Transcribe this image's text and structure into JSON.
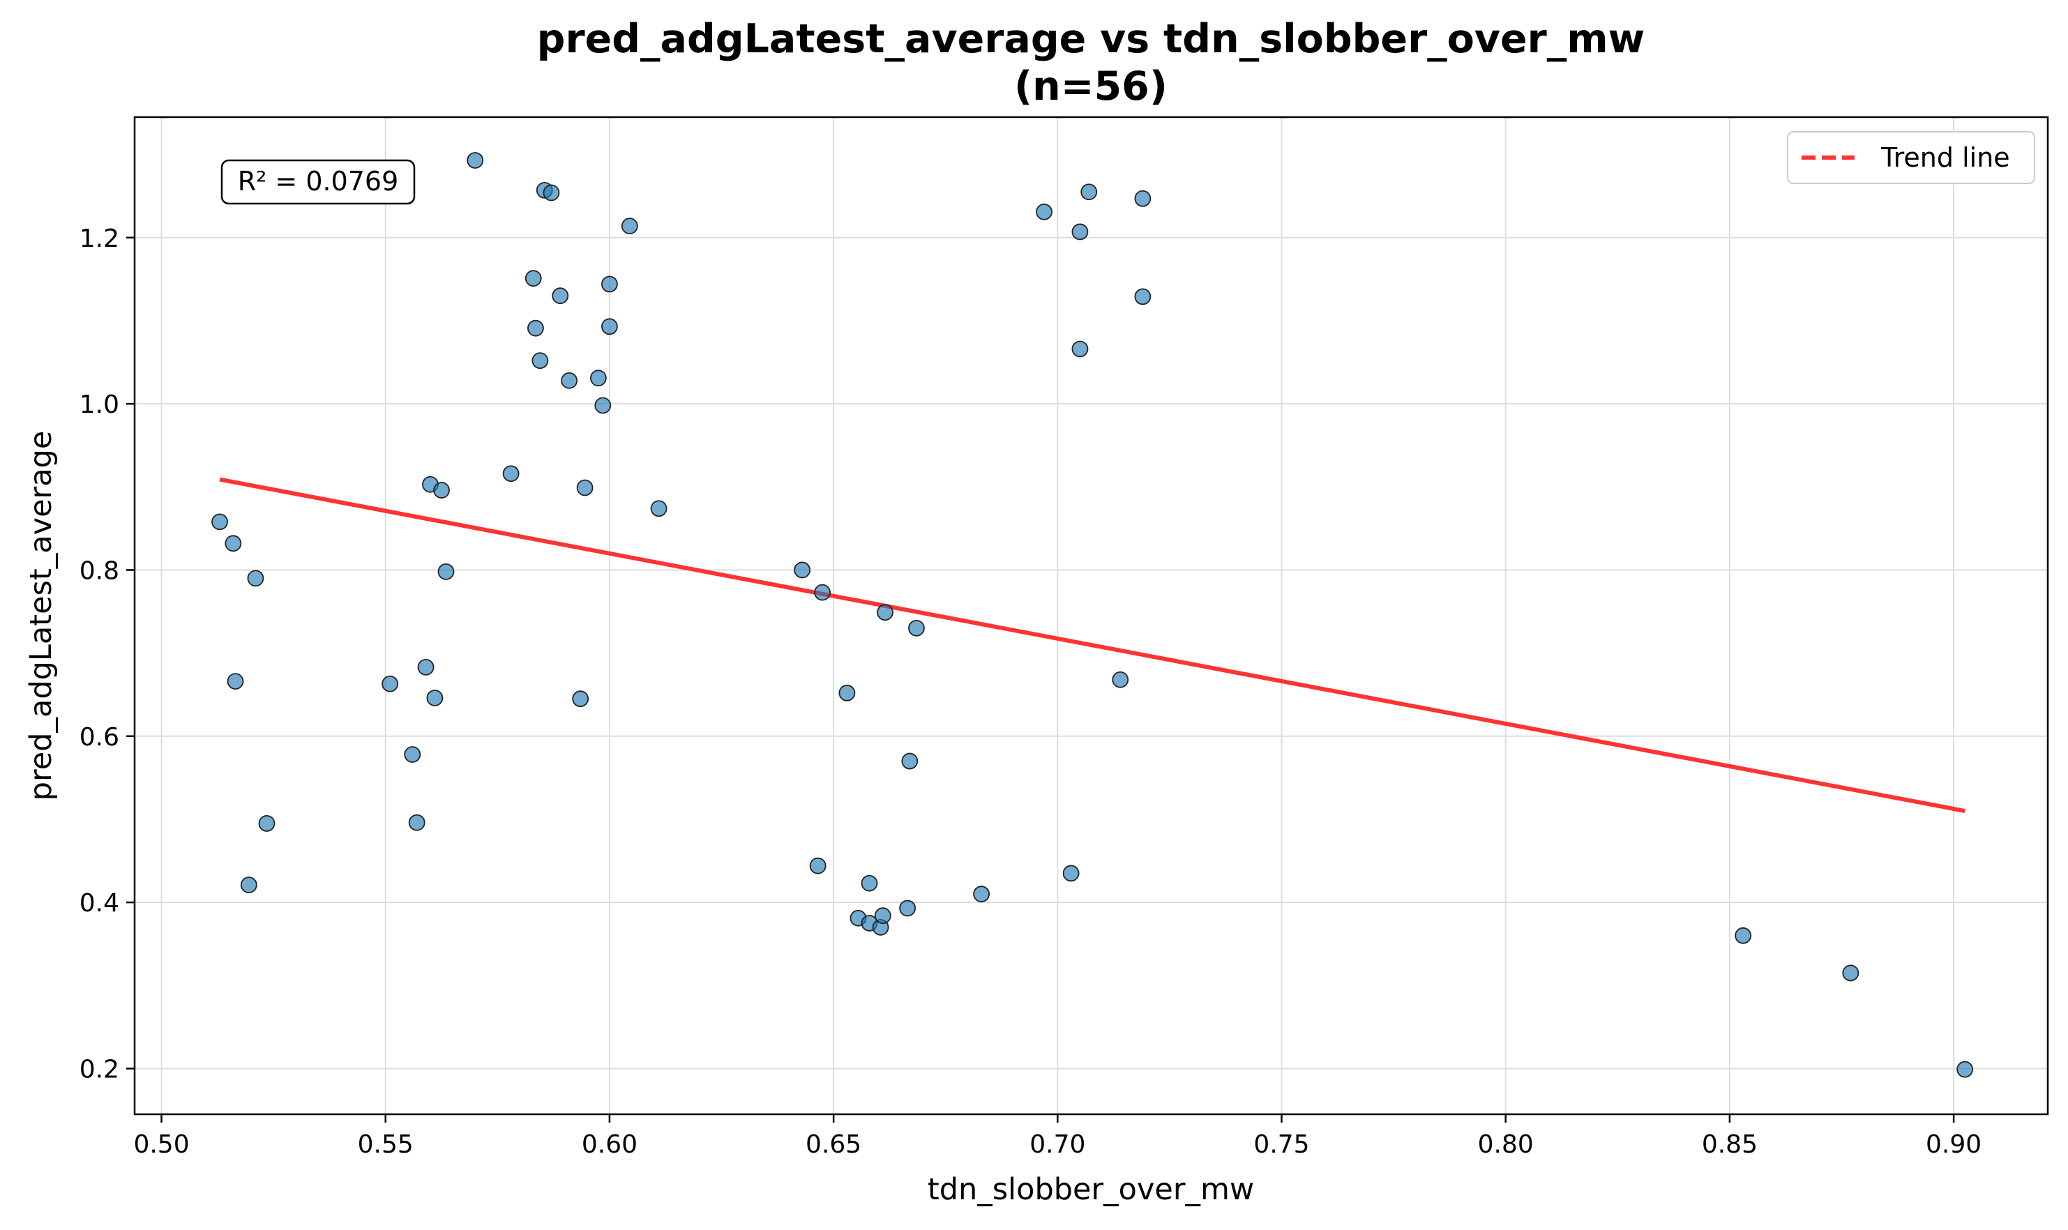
{
  "chart_data": {
    "type": "scatter",
    "title": "pred_adgLatest_average vs tdn_slobber_over_mw",
    "subtitle": "(n=56)",
    "xlabel": "tdn_slobber_over_mw",
    "ylabel": "pred_adgLatest_average",
    "xlim": [
      0.494,
      0.921
    ],
    "ylim": [
      0.145,
      1.345
    ],
    "xticks": [
      0.5,
      0.55,
      0.6,
      0.65,
      0.7,
      0.75,
      0.8,
      0.85,
      0.9
    ],
    "xtick_labels": [
      "0.50",
      "0.55",
      "0.60",
      "0.65",
      "0.70",
      "0.75",
      "0.80",
      "0.85",
      "0.90"
    ],
    "yticks": [
      0.2,
      0.4,
      0.6,
      0.8,
      1.0,
      1.2
    ],
    "ytick_labels": [
      "0.2",
      "0.4",
      "0.6",
      "0.8",
      "1.0",
      "1.2"
    ],
    "grid": true,
    "legend": {
      "position": "top-right",
      "entries": [
        "Trend line"
      ]
    },
    "annotation": "R² = 0.0769",
    "colors": {
      "points": "#1f77b4",
      "trend": "#ff3333"
    },
    "points": [
      {
        "x": 0.513,
        "y": 0.858
      },
      {
        "x": 0.516,
        "y": 0.832
      },
      {
        "x": 0.521,
        "y": 0.79
      },
      {
        "x": 0.5165,
        "y": 0.666
      },
      {
        "x": 0.5235,
        "y": 0.495
      },
      {
        "x": 0.5195,
        "y": 0.421
      },
      {
        "x": 0.551,
        "y": 0.663
      },
      {
        "x": 0.556,
        "y": 0.578
      },
      {
        "x": 0.557,
        "y": 0.496
      },
      {
        "x": 0.559,
        "y": 0.683
      },
      {
        "x": 0.561,
        "y": 0.646
      },
      {
        "x": 0.56,
        "y": 0.903
      },
      {
        "x": 0.5625,
        "y": 0.896
      },
      {
        "x": 0.5635,
        "y": 0.798
      },
      {
        "x": 0.57,
        "y": 1.293
      },
      {
        "x": 0.578,
        "y": 0.916
      },
      {
        "x": 0.583,
        "y": 1.151
      },
      {
        "x": 0.5835,
        "y": 1.091
      },
      {
        "x": 0.5845,
        "y": 1.052
      },
      {
        "x": 0.5855,
        "y": 1.257
      },
      {
        "x": 0.587,
        "y": 1.254
      },
      {
        "x": 0.589,
        "y": 1.13
      },
      {
        "x": 0.591,
        "y": 1.028
      },
      {
        "x": 0.5935,
        "y": 0.645
      },
      {
        "x": 0.5945,
        "y": 0.899
      },
      {
        "x": 0.5975,
        "y": 1.031
      },
      {
        "x": 0.5985,
        "y": 0.998
      },
      {
        "x": 0.6,
        "y": 1.144
      },
      {
        "x": 0.6,
        "y": 1.093
      },
      {
        "x": 0.6045,
        "y": 1.214
      },
      {
        "x": 0.611,
        "y": 0.874
      },
      {
        "x": 0.643,
        "y": 0.8
      },
      {
        "x": 0.6475,
        "y": 0.773
      },
      {
        "x": 0.6465,
        "y": 0.444
      },
      {
        "x": 0.653,
        "y": 0.652
      },
      {
        "x": 0.6555,
        "y": 0.381
      },
      {
        "x": 0.658,
        "y": 0.423
      },
      {
        "x": 0.658,
        "y": 0.375
      },
      {
        "x": 0.6605,
        "y": 0.37
      },
      {
        "x": 0.661,
        "y": 0.384
      },
      {
        "x": 0.6615,
        "y": 0.749
      },
      {
        "x": 0.6665,
        "y": 0.393
      },
      {
        "x": 0.667,
        "y": 0.57
      },
      {
        "x": 0.6685,
        "y": 0.73
      },
      {
        "x": 0.683,
        "y": 0.41
      },
      {
        "x": 0.697,
        "y": 1.231
      },
      {
        "x": 0.703,
        "y": 0.435
      },
      {
        "x": 0.705,
        "y": 1.207
      },
      {
        "x": 0.705,
        "y": 1.066
      },
      {
        "x": 0.707,
        "y": 1.255
      },
      {
        "x": 0.714,
        "y": 0.668
      },
      {
        "x": 0.719,
        "y": 1.129
      },
      {
        "x": 0.719,
        "y": 1.247
      },
      {
        "x": 0.853,
        "y": 0.36
      },
      {
        "x": 0.877,
        "y": 0.315
      },
      {
        "x": 0.9025,
        "y": 0.199
      }
    ],
    "trend_line": {
      "x": [
        0.513,
        0.9025
      ],
      "y": [
        0.909,
        0.51
      ]
    }
  }
}
